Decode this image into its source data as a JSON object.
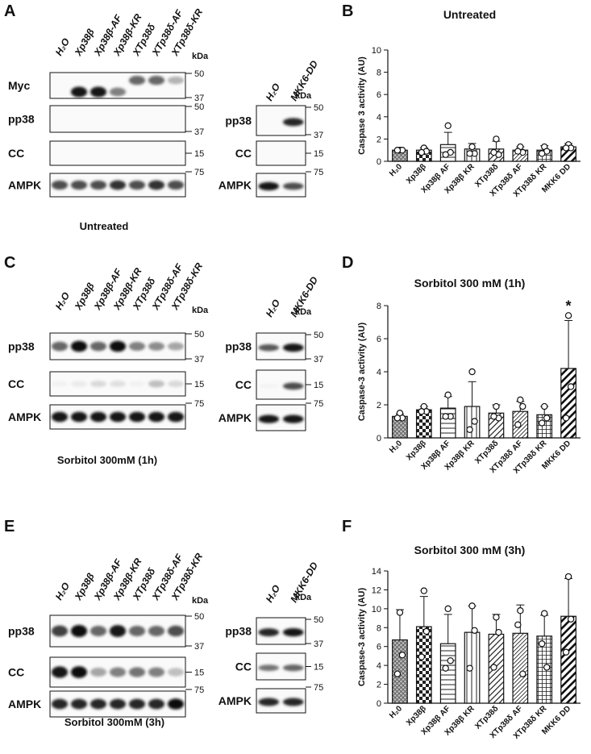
{
  "blots": {
    "lanes_main": [
      "H₂O",
      "Xp38β",
      "Xp38β-AF",
      "Xp38β-KR",
      "XTp38δ",
      "XTp38δ-AF",
      "XTp38δ-KR"
    ],
    "lanes_side": [
      "H₂O",
      "MKK6-DD"
    ],
    "kda_label": "kDa",
    "panels": [
      {
        "letter": "A",
        "caption": "Untreated",
        "rows": [
          {
            "label": "Myc",
            "markers": [
              "50",
              "37"
            ],
            "bands": [
              0,
              0.9,
              0.9,
              0.5,
              0.6,
              0.6,
              0.3
            ],
            "band_pos": [
              0.5,
              0.75,
              0.75,
              0.75,
              0.3,
              0.3,
              0.3
            ]
          },
          {
            "label": "pp38",
            "markers": [
              "50",
              "37"
            ],
            "bands": [
              0,
              0,
              0,
              0,
              0,
              0,
              0
            ]
          },
          {
            "label": "CC",
            "markers": [
              "15"
            ],
            "bands": [
              0,
              0,
              0,
              0,
              0,
              0,
              0
            ]
          },
          {
            "label": "AMPK",
            "markers": [
              "75"
            ],
            "bands": [
              0.7,
              0.7,
              0.7,
              0.8,
              0.7,
              0.8,
              0.7
            ]
          }
        ],
        "side_rows": [
          {
            "label": "pp38",
            "markers": [
              "50",
              "37"
            ],
            "bands": [
              0,
              0.85
            ]
          },
          {
            "label": "CC",
            "markers": [
              "15"
            ],
            "bands": [
              0,
              0
            ]
          },
          {
            "label": "AMPK",
            "markers": [
              "75"
            ],
            "bands": [
              0.9,
              0.7
            ]
          }
        ]
      },
      {
        "letter": "C",
        "caption": "Sorbitol 300mM (1h)",
        "rows": [
          {
            "label": "pp38",
            "markers": [
              "50",
              "37"
            ],
            "bands": [
              0.6,
              0.95,
              0.6,
              0.95,
              0.5,
              0.45,
              0.35
            ]
          },
          {
            "label": "CC",
            "markers": [
              "15"
            ],
            "bands": [
              0.05,
              0.08,
              0.15,
              0.12,
              0.05,
              0.25,
              0.15
            ]
          },
          {
            "label": "AMPK",
            "markers": [
              "75"
            ],
            "bands": [
              0.9,
              0.9,
              0.9,
              0.9,
              0.9,
              0.9,
              0.9
            ]
          }
        ],
        "side_rows": [
          {
            "label": "pp38",
            "markers": [
              "50",
              "37"
            ],
            "bands": [
              0.65,
              0.9
            ]
          },
          {
            "label": "CC",
            "markers": [
              "15"
            ],
            "bands": [
              0.05,
              0.7
            ]
          },
          {
            "label": "AMPK",
            "markers": [
              "75"
            ],
            "bands": [
              0.9,
              0.9
            ]
          }
        ]
      },
      {
        "letter": "E",
        "caption": "Sorbitol 300mM (3h)",
        "rows": [
          {
            "label": "pp38",
            "markers": [
              "50",
              "37"
            ],
            "bands": [
              0.75,
              0.95,
              0.6,
              0.9,
              0.6,
              0.6,
              0.7
            ]
          },
          {
            "label": "CC",
            "markers": [
              "15"
            ],
            "bands": [
              0.9,
              0.95,
              0.35,
              0.5,
              0.55,
              0.5,
              0.25
            ]
          },
          {
            "label": "AMPK",
            "markers": [
              "75"
            ],
            "bands": [
              0.85,
              0.85,
              0.85,
              0.85,
              0.85,
              0.85,
              0.95
            ]
          }
        ],
        "side_rows": [
          {
            "label": "pp38",
            "markers": [
              "50",
              "37"
            ],
            "bands": [
              0.85,
              0.9
            ]
          },
          {
            "label": "CC",
            "markers": [
              "15"
            ],
            "bands": [
              0.55,
              0.6
            ]
          },
          {
            "label": "AMPK",
            "markers": [
              "75"
            ],
            "bands": [
              0.85,
              0.85
            ]
          }
        ]
      }
    ]
  },
  "chart_data": [
    {
      "letter": "B",
      "type": "bar",
      "title": "Untreated",
      "ylabel": "Caspase 3 activity (AU)",
      "ylim": [
        0,
        10
      ],
      "yticks": [
        0,
        2,
        4,
        6,
        8,
        10
      ],
      "categories": [
        "H₂0",
        "Xp38β",
        "Xp38β AF",
        "Xp38β KR",
        "XTp38δ",
        "XTp38δ AF",
        "XTp38δ KR",
        "MKK6 DD"
      ],
      "values": [
        1.0,
        1.0,
        1.5,
        1.1,
        1.1,
        1.0,
        1.0,
        1.3
      ],
      "errors": [
        0.05,
        0.2,
        1.1,
        0.5,
        0.7,
        0.3,
        0.4,
        0.3
      ],
      "points": [
        [
          1.0,
          1.0,
          1.0
        ],
        [
          1.2,
          0.9,
          0.8
        ],
        [
          3.2,
          0.8,
          0.6
        ],
        [
          1.3,
          0.7,
          0.7
        ],
        [
          2.0,
          0.6,
          0.8
        ],
        [
          1.3,
          0.8,
          0.9
        ],
        [
          1.3,
          0.9,
          0.7
        ],
        [
          1.5,
          1.2,
          1.2
        ]
      ],
      "annotations": []
    },
    {
      "letter": "D",
      "type": "bar",
      "title": "Sorbitol 300 mM (1h)",
      "ylabel": "Caspase-3 activity (AU)",
      "ylim": [
        0,
        8
      ],
      "yticks": [
        0,
        2,
        4,
        6,
        8
      ],
      "categories": [
        "H₂0",
        "Xp38β",
        "Xp38β AF",
        "Xp38β KR",
        "XTp38δ",
        "XTp38δ AF",
        "XTp38δ KR",
        "MKK6 DD"
      ],
      "values": [
        1.3,
        1.7,
        1.8,
        1.9,
        1.5,
        1.6,
        1.4,
        4.2
      ],
      "errors": [
        0.15,
        0.2,
        0.7,
        1.5,
        0.5,
        0.6,
        0.5,
        2.9
      ],
      "points": [
        [
          1.5,
          1.2,
          1.2
        ],
        [
          1.9,
          1.6,
          1.6
        ],
        [
          2.6,
          1.3,
          1.3
        ],
        [
          4.0,
          1.0,
          0.5
        ],
        [
          1.9,
          1.2,
          1.3
        ],
        [
          2.3,
          1.9,
          0.8
        ],
        [
          1.9,
          1.2,
          0.9
        ],
        [
          7.4,
          3.1,
          1.2
        ]
      ],
      "annotations": [
        {
          "category": 7,
          "text": "*"
        }
      ]
    },
    {
      "letter": "F",
      "type": "bar",
      "title": "Sorbitol 300 mM (3h)",
      "ylabel": "Caspase-3 activity (AU)",
      "ylim": [
        0,
        14
      ],
      "yticks": [
        0,
        2,
        4,
        6,
        8,
        10,
        12,
        14
      ],
      "categories": [
        "H₂0",
        "Xp38β",
        "Xp38β AF",
        "Xp38β KR",
        "XTp38δ",
        "XTp38δ AF",
        "XTp38δ KR",
        "MKK6 DD"
      ],
      "values": [
        6.7,
        8.1,
        6.3,
        7.5,
        7.3,
        7.4,
        7.1,
        9.2
      ],
      "errors": [
        3.2,
        3.2,
        3.1,
        2.8,
        2.1,
        3.0,
        2.2,
        4.0
      ],
      "points": [
        [
          9.6,
          5.1,
          3.1
        ],
        [
          11.9,
          7.6,
          4.9
        ],
        [
          10.0,
          4.5,
          3.7
        ],
        [
          10.3,
          7.7,
          3.7
        ],
        [
          9.1,
          7.5,
          3.8
        ],
        [
          9.8,
          3.1,
          8.3
        ],
        [
          9.5,
          3.8,
          6.3
        ],
        [
          13.4,
          8.9,
          5.4
        ]
      ],
      "annotations": []
    }
  ]
}
